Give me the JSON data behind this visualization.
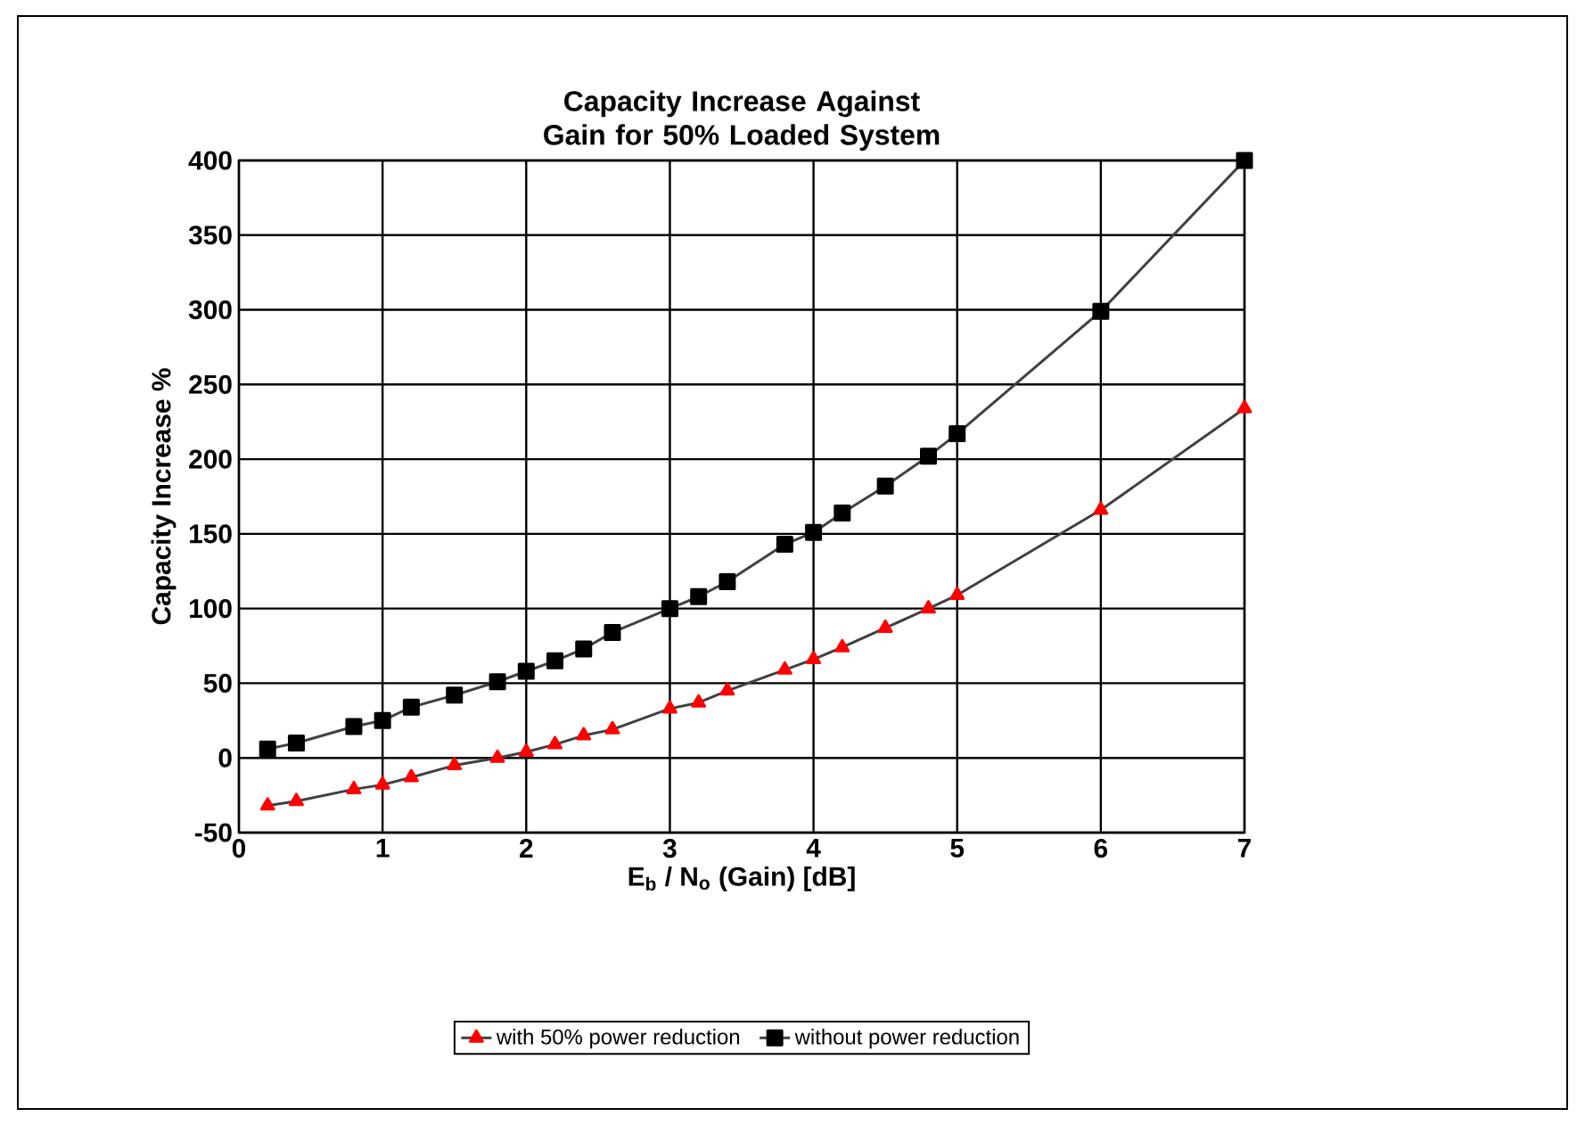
{
  "chart_data": {
    "type": "line",
    "title": "Capacity Increase Against Gain for 50% Loaded System",
    "xlabel": "E$_{b}$ / N$_{o}$ (Gain) [dB]",
    "ylabel": "Capacity Increase %",
    "x": [
      0.2,
      0.4,
      0.8,
      1,
      1.2,
      1.5,
      1.8,
      2,
      2.2,
      2.4,
      2.6,
      3,
      3.2,
      3.4,
      3.8,
      4,
      4.2,
      4.5,
      4.8,
      5,
      6,
      7
    ],
    "series": [
      {
        "name": "with 50% power reduction",
        "color": "#ff0000",
        "marker": "triangle",
        "values": [
          -32,
          -29,
          -21,
          -18,
          -13,
          -5,
          0,
          4,
          9,
          15,
          19,
          33,
          37,
          45,
          59,
          66,
          74,
          87,
          100,
          109,
          166,
          234
        ]
      },
      {
        "name": "without power reduction",
        "color": "#000000",
        "marker": "square",
        "values": [
          6,
          10,
          21,
          25,
          34,
          42,
          51,
          58,
          65,
          73,
          84,
          100,
          108,
          118,
          143,
          151,
          164,
          182,
          202,
          217,
          299,
          400
        ]
      }
    ],
    "xlim": [
      0,
      7
    ],
    "xticks": [
      0,
      1,
      2,
      3,
      4,
      5,
      6,
      7
    ],
    "ylim": [
      -50,
      400
    ],
    "yticks": [
      -50,
      0,
      50,
      100,
      150,
      200,
      250,
      300,
      350,
      400
    ],
    "grid": true,
    "legend": "bottom",
    "line_style": "solid"
  }
}
